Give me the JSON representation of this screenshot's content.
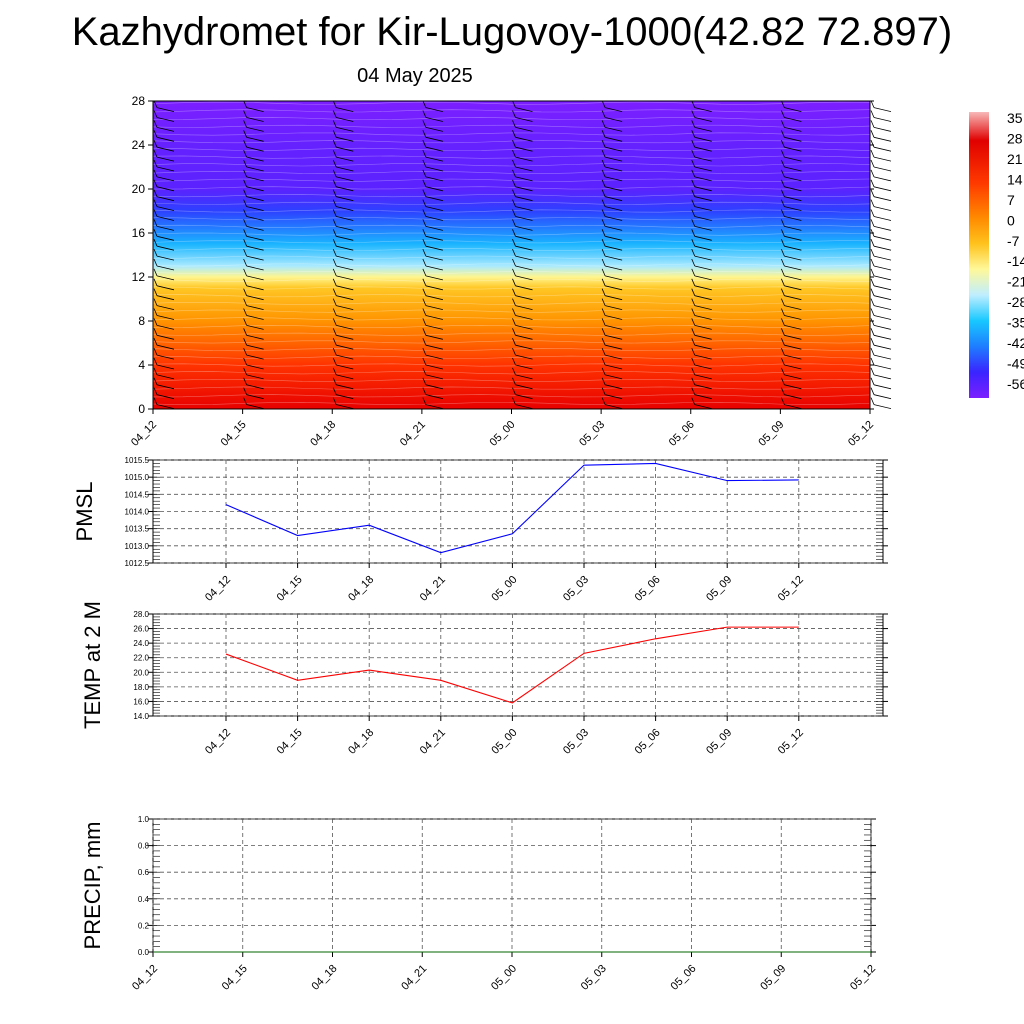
{
  "title": "Kazhydromet for Kir-Lugovoy-1000(42.82 72.897)",
  "subtitle": "04 May 2025",
  "time_labels": [
    "04_12",
    "04_15",
    "04_18",
    "04_21",
    "05_00",
    "05_03",
    "05_06",
    "05_09",
    "05_12"
  ],
  "colors": {
    "pmsl_line": "#0000ff",
    "temp_line": "#ff0000",
    "precip_line": "#006400",
    "grid": "#555555"
  },
  "chart_data": [
    {
      "type": "heatmap",
      "name": "vertical-section",
      "x_ticks": [
        "04_12",
        "04_15",
        "04_18",
        "04_21",
        "05_00",
        "05_03",
        "05_06",
        "05_09",
        "05_12"
      ],
      "y_ticks": [
        0,
        4,
        8,
        12,
        16,
        20,
        24,
        28
      ],
      "ylim": [
        0,
        28
      ],
      "colorbar_ticks": [
        "35",
        "28",
        "21",
        "14",
        "7",
        "0",
        "-7",
        "-14",
        "-21",
        "-28",
        "-35",
        "-42",
        "-49",
        "-56"
      ],
      "temperature_profile": [
        {
          "y": 0,
          "t": 28
        },
        {
          "y": 4,
          "t": 20
        },
        {
          "y": 8,
          "t": 8
        },
        {
          "y": 11,
          "t": -1
        },
        {
          "y": 12,
          "t": -10
        },
        {
          "y": 13,
          "t": -20
        },
        {
          "y": 15,
          "t": -32
        },
        {
          "y": 18,
          "t": -48
        },
        {
          "y": 20,
          "t": -55
        },
        {
          "y": 24,
          "t": -56
        },
        {
          "y": 28,
          "t": -58
        }
      ],
      "wind_barbs": "present"
    },
    {
      "type": "line",
      "name": "pmsl",
      "ylabel": "PMSL",
      "ylim": [
        1012.5,
        1015.5
      ],
      "y_ticks": [
        "1012.5",
        "1013.0",
        "1013.5",
        "1014.0",
        "1014.5",
        "1015.0",
        "1015.5"
      ],
      "categories": [
        "04_12",
        "04_15",
        "04_18",
        "04_21",
        "05_00",
        "05_03",
        "05_06",
        "05_09",
        "05_12"
      ],
      "values": [
        1014.2,
        1013.3,
        1013.6,
        1012.8,
        1013.35,
        1015.35,
        1015.4,
        1014.9,
        1014.92
      ]
    },
    {
      "type": "line",
      "name": "temp-2m",
      "ylabel": "TEMP at 2 M",
      "ylim": [
        14.0,
        28.0
      ],
      "y_ticks": [
        "14.0",
        "16.0",
        "18.0",
        "20.0",
        "22.0",
        "24.0",
        "26.0",
        "28.0"
      ],
      "categories": [
        "04_12",
        "04_15",
        "04_18",
        "04_21",
        "05_00",
        "05_03",
        "05_06",
        "05_09",
        "05_12"
      ],
      "values": [
        22.5,
        18.9,
        20.3,
        18.9,
        15.8,
        22.6,
        24.6,
        26.2,
        26.2
      ]
    },
    {
      "type": "line",
      "name": "precip",
      "ylabel": "PRECIP, mm",
      "ylim": [
        0.0,
        1.0
      ],
      "y_ticks": [
        "0.0",
        "0.2",
        "0.4",
        "0.6",
        "0.8",
        "1.0"
      ],
      "categories": [
        "04_12",
        "04_15",
        "04_18",
        "04_21",
        "05_00",
        "05_03",
        "05_06",
        "05_09",
        "05_12"
      ],
      "values": [
        0,
        0,
        0,
        0,
        0,
        0,
        0,
        0,
        0
      ]
    }
  ]
}
